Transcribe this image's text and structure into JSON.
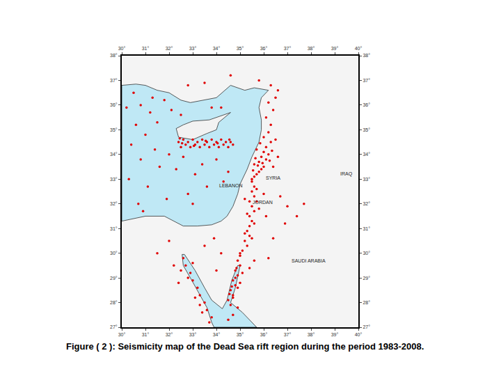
{
  "chart_data": {
    "type": "scatter",
    "title": "Figure ( 2 ): Seismicity map of the Dead Sea rift region during the period 1983-2008.",
    "xlim": [
      30,
      40
    ],
    "ylim": [
      27,
      38
    ],
    "xticks": [
      {
        "value": 30,
        "label": "30°"
      },
      {
        "value": 31,
        "label": "31°"
      },
      {
        "value": 32,
        "label": "32°"
      },
      {
        "value": 33,
        "label": "33°"
      },
      {
        "value": 34,
        "label": "34°"
      },
      {
        "value": 35,
        "label": "35°"
      },
      {
        "value": 36,
        "label": "36°"
      },
      {
        "value": 37,
        "label": "37°"
      },
      {
        "value": 38,
        "label": "38°"
      },
      {
        "value": 39,
        "label": "39°"
      },
      {
        "value": 40,
        "label": "40°"
      }
    ],
    "yticks": [
      {
        "value": 27,
        "label": "27°"
      },
      {
        "value": 28,
        "label": "28°"
      },
      {
        "value": 29,
        "label": "29°"
      },
      {
        "value": 30,
        "label": "30°"
      },
      {
        "value": 31,
        "label": "31°"
      },
      {
        "value": 32,
        "label": "32°"
      },
      {
        "value": 33,
        "label": "33°"
      },
      {
        "value": 34,
        "label": "34°"
      },
      {
        "value": 35,
        "label": "35°"
      },
      {
        "value": 36,
        "label": "36°"
      },
      {
        "value": 37,
        "label": "37°"
      },
      {
        "value": 38,
        "label": "38°"
      }
    ],
    "grid": false,
    "legend": "none",
    "sea": {
      "color": "#bfe8f5",
      "polygons": [
        [
          [
            30,
            36.8
          ],
          [
            30.6,
            36.85
          ],
          [
            31.0,
            36.8
          ],
          [
            31.5,
            36.6
          ],
          [
            32.0,
            36.5
          ],
          [
            32.5,
            36.2
          ],
          [
            32.9,
            36.1
          ],
          [
            33.5,
            36.2
          ],
          [
            34.0,
            36.3
          ],
          [
            34.6,
            36.8
          ],
          [
            35.2,
            36.6
          ],
          [
            35.6,
            36.7
          ],
          [
            36.2,
            36.6
          ],
          [
            35.9,
            36.3
          ],
          [
            35.8,
            35.9
          ],
          [
            35.9,
            35.4
          ],
          [
            35.9,
            35.0
          ],
          [
            35.8,
            34.5
          ],
          [
            35.6,
            34.1
          ],
          [
            35.5,
            33.9
          ],
          [
            35.3,
            33.4
          ],
          [
            35.1,
            33.0
          ],
          [
            35.0,
            32.8
          ],
          [
            34.9,
            32.4
          ],
          [
            34.7,
            31.9
          ],
          [
            34.45,
            31.5
          ],
          [
            34.2,
            31.3
          ],
          [
            33.8,
            31.15
          ],
          [
            33.2,
            31.1
          ],
          [
            32.6,
            31.1
          ],
          [
            32.3,
            31.25
          ],
          [
            31.8,
            31.5
          ],
          [
            31.5,
            31.5
          ],
          [
            31.0,
            31.5
          ],
          [
            30.5,
            31.4
          ],
          [
            30.0,
            31.3
          ]
        ],
        [
          [
            32.55,
            29.95
          ],
          [
            32.6,
            29.5
          ],
          [
            32.9,
            29.0
          ],
          [
            33.3,
            28.3
          ],
          [
            33.6,
            27.8
          ],
          [
            33.8,
            27.2
          ],
          [
            33.9,
            27.0
          ],
          [
            35.7,
            27.0
          ],
          [
            35.1,
            27.6
          ],
          [
            34.6,
            28.0
          ],
          [
            34.8,
            28.6
          ],
          [
            35.0,
            29.5
          ],
          [
            34.9,
            29.5
          ],
          [
            34.65,
            28.9
          ],
          [
            34.45,
            28.1
          ],
          [
            34.25,
            27.75
          ],
          [
            33.8,
            28.1
          ],
          [
            33.5,
            28.6
          ],
          [
            33.1,
            29.3
          ],
          [
            32.65,
            29.95
          ]
        ]
      ]
    },
    "land": {
      "color": "#f2f2f2",
      "polygons": [
        [
          [
            32.3,
            35.05
          ],
          [
            32.6,
            35.2
          ],
          [
            33.0,
            35.35
          ],
          [
            33.7,
            35.4
          ],
          [
            34.6,
            35.7
          ],
          [
            34.1,
            35.3
          ],
          [
            34.0,
            35.0
          ],
          [
            33.6,
            34.85
          ],
          [
            33.0,
            34.6
          ],
          [
            32.4,
            34.7
          ]
        ]
      ]
    },
    "series": [
      {
        "color": "#e00000",
        "marker": "circle",
        "points": [
          [
            32.4,
            34.5
          ],
          [
            32.5,
            34.3
          ],
          [
            32.6,
            34.6
          ],
          [
            32.7,
            34.4
          ],
          [
            32.8,
            34.5
          ],
          [
            32.9,
            34.3
          ],
          [
            33.0,
            34.6
          ],
          [
            33.1,
            34.4
          ],
          [
            33.2,
            34.5
          ],
          [
            33.3,
            34.3
          ],
          [
            33.4,
            34.6
          ],
          [
            33.5,
            34.4
          ],
          [
            33.6,
            34.5
          ],
          [
            33.7,
            34.3
          ],
          [
            33.8,
            34.6
          ],
          [
            33.9,
            34.4
          ],
          [
            34.0,
            34.5
          ],
          [
            34.1,
            34.3
          ],
          [
            34.2,
            34.6
          ],
          [
            34.3,
            34.4
          ],
          [
            34.4,
            34.5
          ],
          [
            34.5,
            34.3
          ],
          [
            34.6,
            34.5
          ],
          [
            34.7,
            34.4
          ],
          [
            32.55,
            34.45
          ],
          [
            33.05,
            34.35
          ],
          [
            33.55,
            34.55
          ],
          [
            34.05,
            34.45
          ],
          [
            34.55,
            34.6
          ],
          [
            32.45,
            34.65
          ],
          [
            35.5,
            33.0
          ],
          [
            35.6,
            33.1
          ],
          [
            35.7,
            33.2
          ],
          [
            35.8,
            33.3
          ],
          [
            35.9,
            33.4
          ],
          [
            36.0,
            33.5
          ],
          [
            35.6,
            33.6
          ],
          [
            35.8,
            33.7
          ],
          [
            36.1,
            33.8
          ],
          [
            35.9,
            33.9
          ],
          [
            36.2,
            34.0
          ],
          [
            36.0,
            34.1
          ],
          [
            35.7,
            34.2
          ],
          [
            36.1,
            34.3
          ],
          [
            36.3,
            34.5
          ],
          [
            36.0,
            34.7
          ],
          [
            36.2,
            34.9
          ],
          [
            36.3,
            35.2
          ],
          [
            36.1,
            35.5
          ],
          [
            36.4,
            35.8
          ],
          [
            36.2,
            36.1
          ],
          [
            36.5,
            36.3
          ],
          [
            36.6,
            36.6
          ],
          [
            35.55,
            33.35
          ],
          [
            35.75,
            33.55
          ],
          [
            35.95,
            33.65
          ],
          [
            36.25,
            33.75
          ],
          [
            35.65,
            33.85
          ],
          [
            36.35,
            34.15
          ],
          [
            35.85,
            34.45
          ],
          [
            36.5,
            34.6
          ],
          [
            36.4,
            33.5
          ],
          [
            36.6,
            33.9
          ],
          [
            35.5,
            32.9
          ],
          [
            35.6,
            32.7
          ],
          [
            35.5,
            32.5
          ],
          [
            35.6,
            32.3
          ],
          [
            35.4,
            32.1
          ],
          [
            35.5,
            31.9
          ],
          [
            35.6,
            31.7
          ],
          [
            35.4,
            31.5
          ],
          [
            35.5,
            31.3
          ],
          [
            35.4,
            31.1
          ],
          [
            35.3,
            30.9
          ],
          [
            35.4,
            30.7
          ],
          [
            35.2,
            30.5
          ],
          [
            35.3,
            30.3
          ],
          [
            35.1,
            30.1
          ],
          [
            35.7,
            32.1
          ],
          [
            35.8,
            31.8
          ],
          [
            35.3,
            31.6
          ],
          [
            35.6,
            31.2
          ],
          [
            35.2,
            30.8
          ],
          [
            35.5,
            30.6
          ],
          [
            35.7,
            32.6
          ],
          [
            35.2,
            32.2
          ],
          [
            36.0,
            32.4
          ],
          [
            36.1,
            31.5
          ],
          [
            35.0,
            29.9
          ],
          [
            34.9,
            29.7
          ],
          [
            35.0,
            29.5
          ],
          [
            34.8,
            29.3
          ],
          [
            34.9,
            29.1
          ],
          [
            34.7,
            28.9
          ],
          [
            34.8,
            28.7
          ],
          [
            34.6,
            28.5
          ],
          [
            34.7,
            28.3
          ],
          [
            34.5,
            28.1
          ],
          [
            34.6,
            27.9
          ],
          [
            34.8,
            29.0
          ],
          [
            34.9,
            28.6
          ],
          [
            34.7,
            28.2
          ],
          [
            35.0,
            28.8
          ],
          [
            35.1,
            29.2
          ],
          [
            34.85,
            29.4
          ],
          [
            34.65,
            28.65
          ],
          [
            34.55,
            28.35
          ],
          [
            35.0,
            30.0
          ],
          [
            34.9,
            27.8
          ],
          [
            34.7,
            27.5
          ],
          [
            34.5,
            27.3
          ],
          [
            32.6,
            29.8
          ],
          [
            32.7,
            29.5
          ],
          [
            32.9,
            29.2
          ],
          [
            33.0,
            28.9
          ],
          [
            33.2,
            28.6
          ],
          [
            33.3,
            28.3
          ],
          [
            33.5,
            28.0
          ],
          [
            33.6,
            27.7
          ],
          [
            33.8,
            27.4
          ],
          [
            32.8,
            29.0
          ],
          [
            33.1,
            28.2
          ],
          [
            33.4,
            27.6
          ],
          [
            32.5,
            29.3
          ],
          [
            33.0,
            29.6
          ],
          [
            33.7,
            27.2
          ],
          [
            33.3,
            27.9
          ],
          [
            32.2,
            29.5
          ],
          [
            32.4,
            28.8
          ],
          [
            30.5,
            36.5
          ],
          [
            30.8,
            36.0
          ],
          [
            31.2,
            35.7
          ],
          [
            30.6,
            35.2
          ],
          [
            31.0,
            34.8
          ],
          [
            30.4,
            34.4
          ],
          [
            31.4,
            34.2
          ],
          [
            30.8,
            33.8
          ],
          [
            31.6,
            33.5
          ],
          [
            30.3,
            33.0
          ],
          [
            31.1,
            32.7
          ],
          [
            31.9,
            32.2
          ],
          [
            30.7,
            32.0
          ],
          [
            32.3,
            33.4
          ],
          [
            32.6,
            33.9
          ],
          [
            33.1,
            33.2
          ],
          [
            33.6,
            32.7
          ],
          [
            34.0,
            33.8
          ],
          [
            34.3,
            32.9
          ],
          [
            32.8,
            32.4
          ],
          [
            31.5,
            35.3
          ],
          [
            32.1,
            35.8
          ],
          [
            31.8,
            36.2
          ],
          [
            30.2,
            35.9
          ],
          [
            33.4,
            33.6
          ],
          [
            32.0,
            34.0
          ],
          [
            30.9,
            31.7
          ],
          [
            31.3,
            36.3
          ],
          [
            32.5,
            35.6
          ],
          [
            34.2,
            35.9
          ],
          [
            33.8,
            35.9
          ],
          [
            34.5,
            33.3
          ],
          [
            33.0,
            32.0
          ],
          [
            32.8,
            36.8
          ],
          [
            33.5,
            36.9
          ],
          [
            34.6,
            37.2
          ],
          [
            35.8,
            37.0
          ],
          [
            36.3,
            36.8
          ],
          [
            36.7,
            32.3
          ],
          [
            37.0,
            31.9
          ],
          [
            37.4,
            31.5
          ],
          [
            36.9,
            31.2
          ],
          [
            37.7,
            32.0
          ],
          [
            36.4,
            30.6
          ],
          [
            36.2,
            29.8
          ],
          [
            35.4,
            29.4
          ],
          [
            35.6,
            29.7
          ],
          [
            33.9,
            30.6
          ],
          [
            34.2,
            30.0
          ],
          [
            33.5,
            30.3
          ],
          [
            34.0,
            29.3
          ],
          [
            32.0,
            30.5
          ],
          [
            31.5,
            30.0
          ]
        ]
      }
    ],
    "annotations": [
      {
        "text": "SYRIA",
        "x": 36.4,
        "y": 33.05
      },
      {
        "text": "JORDAN",
        "x": 35.95,
        "y": 32.05
      },
      {
        "text": "IRAQ",
        "x": 39.5,
        "y": 33.2
      },
      {
        "text": "LEBANON",
        "x": 34.6,
        "y": 32.75
      },
      {
        "text": "SAUDI ARABIA",
        "x": 37.9,
        "y": 29.7
      }
    ]
  }
}
